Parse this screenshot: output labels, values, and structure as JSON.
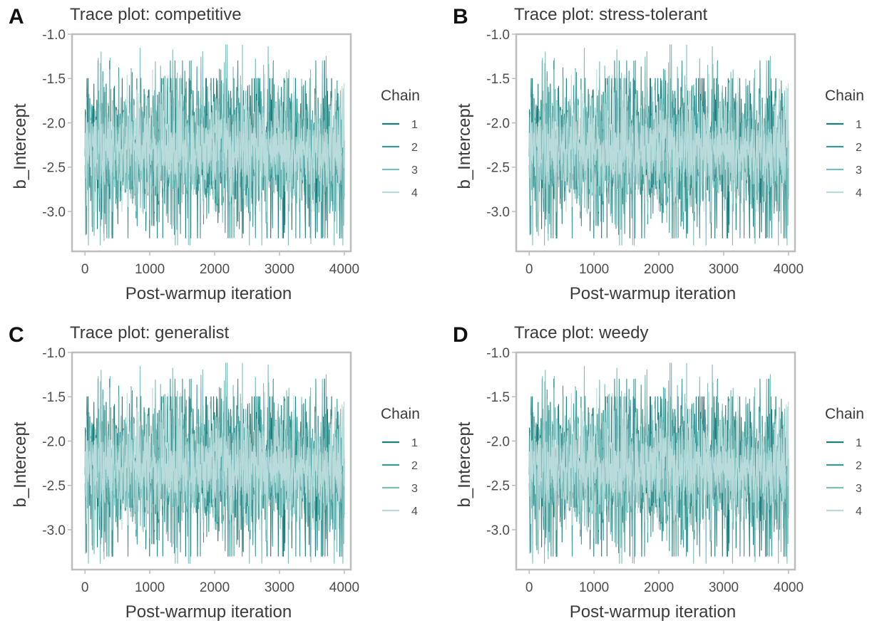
{
  "colors": {
    "chain_1": "#1a7f7c",
    "chain_2": "#3b9796",
    "chain_3": "#7cbcba",
    "chain_4": "#b9dcdb",
    "frame": "#bdbdbd"
  },
  "chart_data": [
    {
      "type": "line",
      "panel_label": "A",
      "title": "Trace plot: competitive",
      "xlabel": "Post-warmup iteration",
      "ylabel": "b_Intercept",
      "xlim": [
        -200,
        4100
      ],
      "ylim": [
        -3.45,
        -1.0
      ],
      "x_ticks": [
        "0",
        "1000",
        "2000",
        "3000",
        "4000"
      ],
      "y_ticks": [
        "-1.0",
        "-1.5",
        "-2.0",
        "-2.5",
        "-3.0"
      ],
      "legend": {
        "title": "Chain",
        "entries": [
          "1",
          "2",
          "3",
          "4"
        ],
        "placement": "right"
      },
      "grid": false,
      "series": [
        {
          "name": "1",
          "x_range": [
            0,
            4000
          ],
          "center": -2.3,
          "typical_range": [
            -2.7,
            -1.85
          ],
          "min": -3.3,
          "max": -1.5
        },
        {
          "name": "2",
          "x_range": [
            0,
            4000
          ],
          "center": -2.3,
          "typical_range": [
            -2.75,
            -1.85
          ],
          "min": -3.3,
          "max": -1.3
        },
        {
          "name": "3",
          "x_range": [
            0,
            4000
          ],
          "center": -2.3,
          "typical_range": [
            -2.7,
            -1.9
          ],
          "min": -3.38,
          "max": -1.12
        },
        {
          "name": "4",
          "x_range": [
            0,
            4000
          ],
          "center": -2.3,
          "typical_range": [
            -2.6,
            -2.0
          ],
          "min": -3.0,
          "max": -1.4
        }
      ]
    },
    {
      "type": "line",
      "panel_label": "B",
      "title": "Trace plot: stress-tolerant",
      "xlabel": "Post-warmup iteration",
      "ylabel": "b_Intercept",
      "xlim": [
        -200,
        4100
      ],
      "ylim": [
        -3.45,
        -1.0
      ],
      "x_ticks": [
        "0",
        "1000",
        "2000",
        "3000",
        "4000"
      ],
      "y_ticks": [
        "-1.0",
        "-1.5",
        "-2.0",
        "-2.5",
        "-3.0"
      ],
      "legend": {
        "title": "Chain",
        "entries": [
          "1",
          "2",
          "3",
          "4"
        ],
        "placement": "right"
      },
      "grid": false,
      "series": [
        {
          "name": "1",
          "x_range": [
            0,
            4000
          ],
          "center": -2.3,
          "typical_range": [
            -2.7,
            -1.85
          ],
          "min": -3.3,
          "max": -1.5
        },
        {
          "name": "2",
          "x_range": [
            0,
            4000
          ],
          "center": -2.3,
          "typical_range": [
            -2.75,
            -1.85
          ],
          "min": -3.3,
          "max": -1.3
        },
        {
          "name": "3",
          "x_range": [
            0,
            4000
          ],
          "center": -2.3,
          "typical_range": [
            -2.7,
            -1.9
          ],
          "min": -3.38,
          "max": -1.12
        },
        {
          "name": "4",
          "x_range": [
            0,
            4000
          ],
          "center": -2.3,
          "typical_range": [
            -2.6,
            -2.0
          ],
          "min": -3.0,
          "max": -1.4
        }
      ]
    },
    {
      "type": "line",
      "panel_label": "C",
      "title": "Trace plot: generalist",
      "xlabel": "Post-warmup iteration",
      "ylabel": "b_Intercept",
      "xlim": [
        -200,
        4100
      ],
      "ylim": [
        -3.45,
        -1.0
      ],
      "x_ticks": [
        "0",
        "1000",
        "2000",
        "3000",
        "4000"
      ],
      "y_ticks": [
        "-1.0",
        "-1.5",
        "-2.0",
        "-2.5",
        "-3.0"
      ],
      "legend": {
        "title": "Chain",
        "entries": [
          "1",
          "2",
          "3",
          "4"
        ],
        "placement": "right"
      },
      "grid": false,
      "series": [
        {
          "name": "1",
          "x_range": [
            0,
            4000
          ],
          "center": -2.3,
          "typical_range": [
            -2.7,
            -1.85
          ],
          "min": -3.3,
          "max": -1.5
        },
        {
          "name": "2",
          "x_range": [
            0,
            4000
          ],
          "center": -2.3,
          "typical_range": [
            -2.75,
            -1.85
          ],
          "min": -3.3,
          "max": -1.3
        },
        {
          "name": "3",
          "x_range": [
            0,
            4000
          ],
          "center": -2.3,
          "typical_range": [
            -2.7,
            -1.9
          ],
          "min": -3.38,
          "max": -1.12
        },
        {
          "name": "4",
          "x_range": [
            0,
            4000
          ],
          "center": -2.3,
          "typical_range": [
            -2.6,
            -2.0
          ],
          "min": -3.0,
          "max": -1.4
        }
      ]
    },
    {
      "type": "line",
      "panel_label": "D",
      "title": "Trace plot: weedy",
      "xlabel": "Post-warmup iteration",
      "ylabel": "b_Intercept",
      "xlim": [
        -200,
        4100
      ],
      "ylim": [
        -3.45,
        -1.0
      ],
      "x_ticks": [
        "0",
        "1000",
        "2000",
        "3000",
        "4000"
      ],
      "y_ticks": [
        "-1.0",
        "-1.5",
        "-2.0",
        "-2.5",
        "-3.0"
      ],
      "legend": {
        "title": "Chain",
        "entries": [
          "1",
          "2",
          "3",
          "4"
        ],
        "placement": "right"
      },
      "grid": false,
      "series": [
        {
          "name": "1",
          "x_range": [
            0,
            4000
          ],
          "center": -2.3,
          "typical_range": [
            -2.7,
            -1.85
          ],
          "min": -3.3,
          "max": -1.5
        },
        {
          "name": "2",
          "x_range": [
            0,
            4000
          ],
          "center": -2.3,
          "typical_range": [
            -2.75,
            -1.85
          ],
          "min": -3.3,
          "max": -1.3
        },
        {
          "name": "3",
          "x_range": [
            0,
            4000
          ],
          "center": -2.3,
          "typical_range": [
            -2.7,
            -1.9
          ],
          "min": -3.38,
          "max": -1.12
        },
        {
          "name": "4",
          "x_range": [
            0,
            4000
          ],
          "center": -2.3,
          "typical_range": [
            -2.6,
            -2.0
          ],
          "min": -3.0,
          "max": -1.4
        }
      ]
    }
  ]
}
